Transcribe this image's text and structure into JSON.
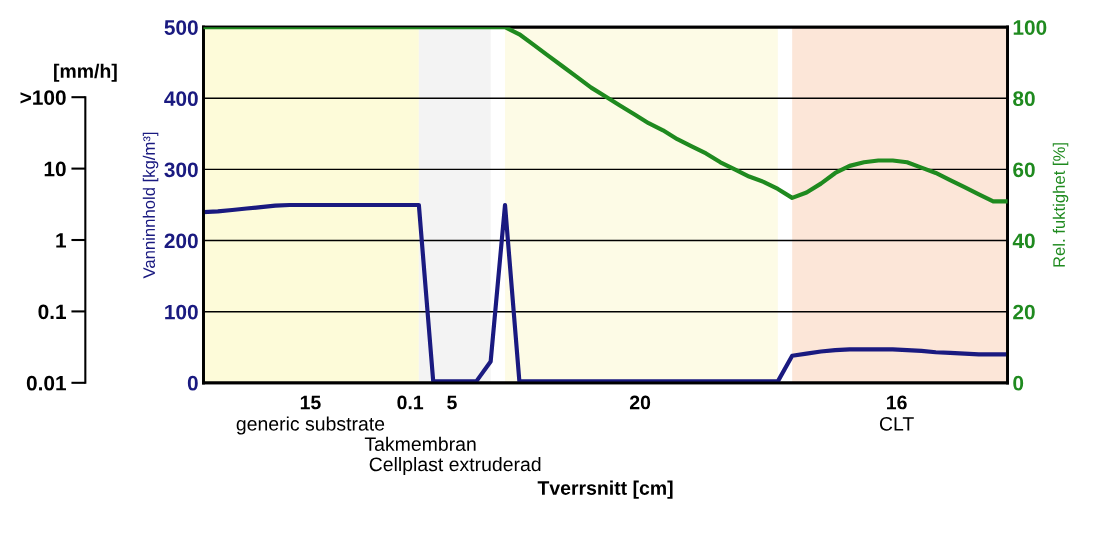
{
  "chart_data": {
    "type": "line",
    "xlabel": "Tverrsnitt [cm]",
    "ylabel": "Vanninnhold [kg/m³]",
    "y2label": "Rel. fuktighet [%]",
    "y3label": "[mm/h]",
    "categories": [
      null,
      null,
      null,
      null,
      null,
      null,
      null,
      null,
      null,
      null,
      null,
      null,
      null,
      null,
      null,
      null,
      null,
      null,
      null,
      null,
      null,
      null,
      null,
      null,
      null,
      null,
      null,
      null,
      null,
      null,
      null,
      null,
      null,
      null,
      null,
      null,
      null,
      null,
      null,
      null,
      null,
      null,
      null,
      null,
      null,
      null,
      null,
      null,
      null,
      null,
      null,
      null,
      null,
      null,
      null,
      null,
      null
    ],
    "annotations": [
      "15",
      "0.1",
      "5",
      "20",
      "16",
      "generic substrate",
      "Takmembran",
      "Cellplast extruderad",
      "CLT"
    ],
    "ylim": [
      0,
      500
    ],
    "yticks": [
      0,
      100,
      200,
      300,
      400,
      500
    ],
    "y2lim": [
      0,
      100
    ],
    "y2ticks": [
      0,
      20,
      40,
      60,
      80,
      100
    ],
    "y3lim": [
      0.01,
      100
    ],
    "y3ticks": [
      0.01,
      0.1,
      1,
      10,
      {
        "value": 100,
        "label": ">100"
      }
    ],
    "grid": "y",
    "legend": false,
    "log": "y3",
    "tick_labels": "y",
    "series": [
      {
        "color": "#1a1a80",
        "axis": "y",
        "values": [
          240,
          241,
          243,
          245,
          247,
          249,
          250,
          250,
          250,
          250,
          250,
          250,
          250,
          250,
          250,
          250,
          2,
          2,
          2,
          2,
          30,
          250,
          2,
          2,
          2,
          2,
          2,
          2,
          2,
          2,
          2,
          2,
          2,
          2,
          2,
          2,
          2,
          2,
          2,
          2,
          2,
          38,
          41,
          44,
          46,
          47,
          47,
          47,
          47,
          46,
          45,
          43,
          42,
          41,
          40,
          40,
          40
        ]
      },
      {
        "color": "#1f8a1f",
        "axis": "y2",
        "values": [
          100,
          100,
          100,
          100,
          100,
          100,
          100,
          100,
          100,
          100,
          100,
          100,
          100,
          100,
          100,
          100,
          100,
          100,
          100,
          100,
          100,
          100,
          98,
          95,
          92,
          89,
          86,
          83,
          80.5,
          78,
          75.5,
          73,
          71,
          68.5,
          66.5,
          64.5,
          62,
          60,
          58,
          56.5,
          54.5,
          52,
          53.5,
          56,
          59,
          61,
          62,
          62.5,
          62.5,
          62,
          60.5,
          59,
          57,
          55,
          53,
          51,
          51
        ]
      }
    ]
  }
}
